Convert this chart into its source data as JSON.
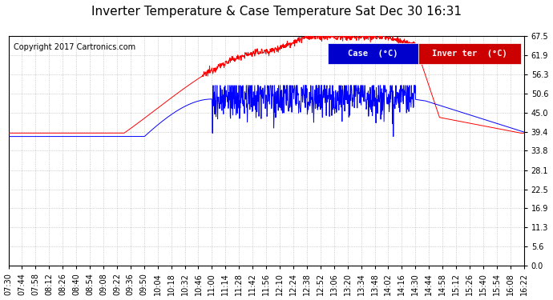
{
  "title": "Inverter Temperature & Case Temperature Sat Dec 30 16:31",
  "copyright": "Copyright 2017 Cartronics.com",
  "legend_case_label": "Case  (°C)",
  "legend_inverter_label": "Inver ter  (°C)",
  "case_color": "#0000FF",
  "inverter_color": "#FF0000",
  "background_color": "#FFFFFF",
  "plot_bg_color": "#FFFFFF",
  "grid_color": "#999999",
  "yticks": [
    0.0,
    5.6,
    11.3,
    16.9,
    22.5,
    28.1,
    33.8,
    39.4,
    45.0,
    50.6,
    56.3,
    61.9,
    67.5
  ],
  "ylim": [
    0.0,
    67.5
  ],
  "xtick_labels": [
    "07:30",
    "07:44",
    "07:58",
    "08:12",
    "08:26",
    "08:40",
    "08:54",
    "09:08",
    "09:22",
    "09:36",
    "09:50",
    "10:04",
    "10:18",
    "10:32",
    "10:46",
    "11:00",
    "11:14",
    "11:28",
    "11:42",
    "11:56",
    "12:10",
    "12:24",
    "12:38",
    "12:52",
    "13:06",
    "13:20",
    "13:34",
    "13:48",
    "14:02",
    "14:16",
    "14:30",
    "14:44",
    "14:58",
    "15:12",
    "15:26",
    "15:40",
    "15:54",
    "16:08",
    "16:22"
  ],
  "title_fontsize": 11,
  "copyright_fontsize": 7,
  "legend_fontsize": 7.5,
  "tick_fontsize": 7
}
